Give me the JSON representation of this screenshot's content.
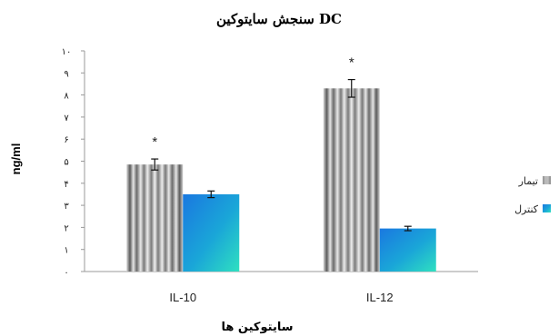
{
  "chart_data": {
    "type": "bar",
    "title": "سنجش سایتوکین DC",
    "xlabel": "سایتوکین ها",
    "ylabel": "ng/ml",
    "ylim": [
      0,
      10
    ],
    "yticks": [
      "۰",
      "۱",
      "۲",
      "۳",
      "۴",
      "۵",
      "۶",
      "۷",
      "۸",
      "۹",
      "۱۰"
    ],
    "categories": [
      "IL-10",
      "IL-12"
    ],
    "series": [
      {
        "name": "تیمار",
        "values": [
          4.85,
          8.3
        ],
        "errors": [
          0.25,
          0.4
        ],
        "color": "#b0b0b0"
      },
      {
        "name": "کنترل",
        "values": [
          3.5,
          1.95
        ],
        "errors": [
          0.15,
          0.1
        ],
        "color": "#1f8fe6"
      }
    ],
    "annotations": [
      {
        "category": "IL-10",
        "series": "تیمار",
        "text": "*"
      },
      {
        "category": "IL-12",
        "series": "تیمار",
        "text": "*"
      }
    ],
    "grid": false,
    "legend_position": "right"
  }
}
